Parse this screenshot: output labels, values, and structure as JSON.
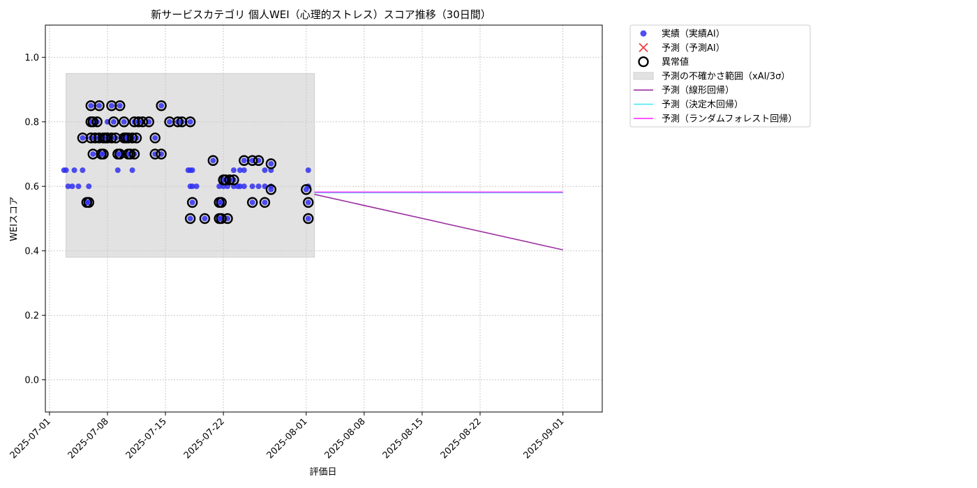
{
  "chart_data": {
    "type": "scatter",
    "title": "新サービスカテゴリ 個人WEI（心理的ストレス）スコア推移（30日間）",
    "xlabel": "評価日",
    "ylabel": "WEIスコア",
    "xlim": [
      "2025-06-30T12:00",
      "2025-09-05T18:00"
    ],
    "ylim": [
      -0.1,
      1.1
    ],
    "x_ticks": [
      "2025-07-01",
      "2025-07-08",
      "2025-07-15",
      "2025-07-22",
      "2025-08-01",
      "2025-08-08",
      "2025-08-15",
      "2025-08-22",
      "2025-09-01"
    ],
    "y_ticks": [
      0.0,
      0.2,
      0.4,
      0.6,
      0.8,
      1.0
    ],
    "y_tick_labels": [
      "0.0",
      "0.2",
      "0.4",
      "0.6",
      "0.8",
      "1.0"
    ],
    "grid": true,
    "legend_position": "outside-top-right",
    "legend": [
      {
        "label": "実績（実績AI）",
        "kind": "dot",
        "color": "#3030f0"
      },
      {
        "label": "予測（予測AI）",
        "kind": "x",
        "color": "#f04040"
      },
      {
        "label": "異常値",
        "kind": "ring",
        "color": "#000000"
      },
      {
        "label": "予測の不確かさ範囲（xAI/3σ）",
        "kind": "patch",
        "color": "#e2e2e2"
      },
      {
        "label": "予測（線形回帰）",
        "kind": "line",
        "color": "#9b30a0"
      },
      {
        "label": "予測（決定木回帰）",
        "kind": "line",
        "color": "#40e8f0"
      },
      {
        "label": "予測（ランダムフォレスト回帰）",
        "kind": "line",
        "color": "#ff30ff"
      }
    ],
    "uncertainty_band": {
      "x_start": "2025-07-03",
      "x_end": "2025-08-02",
      "y_low": 0.38,
      "y_high": 0.95,
      "color": "#e2e2e2"
    },
    "series": [
      {
        "name": "実績（実績AI）",
        "color": "#3030f0",
        "points": [
          [
            "2025-07-02T18:00",
            0.65
          ],
          [
            "2025-07-03T00:00",
            0.65
          ],
          [
            "2025-07-03T06:00",
            0.6
          ],
          [
            "2025-07-03T18:00",
            0.6
          ],
          [
            "2025-07-04T00:00",
            0.65
          ],
          [
            "2025-07-04T12:00",
            0.6
          ],
          [
            "2025-07-05T00:00",
            0.65
          ],
          [
            "2025-07-05T00:00",
            0.75
          ],
          [
            "2025-07-05T12:00",
            0.55
          ],
          [
            "2025-07-05T18:00",
            0.6
          ],
          [
            "2025-07-05T18:00",
            0.55
          ],
          [
            "2025-07-06T00:00",
            0.8
          ],
          [
            "2025-07-06T00:00",
            0.85
          ],
          [
            "2025-07-06T00:00",
            0.75
          ],
          [
            "2025-07-06T06:00",
            0.8
          ],
          [
            "2025-07-06T06:00",
            0.7
          ],
          [
            "2025-07-06T12:00",
            0.75
          ],
          [
            "2025-07-06T18:00",
            0.8
          ],
          [
            "2025-07-07T00:00",
            0.85
          ],
          [
            "2025-07-07T00:00",
            0.75
          ],
          [
            "2025-07-07T06:00",
            0.7
          ],
          [
            "2025-07-07T12:00",
            0.75
          ],
          [
            "2025-07-07T12:00",
            0.7
          ],
          [
            "2025-07-07T18:00",
            0.75
          ],
          [
            "2025-07-08T00:00",
            0.8
          ],
          [
            "2025-07-08T00:00",
            0.75
          ],
          [
            "2025-07-08T12:00",
            0.75
          ],
          [
            "2025-07-08T12:00",
            0.85
          ],
          [
            "2025-07-08T18:00",
            0.8
          ],
          [
            "2025-07-09T00:00",
            0.75
          ],
          [
            "2025-07-09T06:00",
            0.7
          ],
          [
            "2025-07-09T06:00",
            0.65
          ],
          [
            "2025-07-09T12:00",
            0.85
          ],
          [
            "2025-07-09T12:00",
            0.7
          ],
          [
            "2025-07-10T00:00",
            0.75
          ],
          [
            "2025-07-10T00:00",
            0.8
          ],
          [
            "2025-07-10T06:00",
            0.75
          ],
          [
            "2025-07-10T12:00",
            0.7
          ],
          [
            "2025-07-10T12:00",
            0.75
          ],
          [
            "2025-07-10T18:00",
            0.7
          ],
          [
            "2025-07-11T00:00",
            0.75
          ],
          [
            "2025-07-11T00:00",
            0.65
          ],
          [
            "2025-07-11T06:00",
            0.8
          ],
          [
            "2025-07-11T06:00",
            0.7
          ],
          [
            "2025-07-11T12:00",
            0.75
          ],
          [
            "2025-07-11T18:00",
            0.8
          ],
          [
            "2025-07-12T06:00",
            0.8
          ],
          [
            "2025-07-13T00:00",
            0.8
          ],
          [
            "2025-07-13T18:00",
            0.75
          ],
          [
            "2025-07-13T18:00",
            0.7
          ],
          [
            "2025-07-14T12:00",
            0.85
          ],
          [
            "2025-07-14T12:00",
            0.7
          ],
          [
            "2025-07-15T12:00",
            0.8
          ],
          [
            "2025-07-16T12:00",
            0.8
          ],
          [
            "2025-07-17T00:00",
            0.8
          ],
          [
            "2025-07-17T18:00",
            0.65
          ],
          [
            "2025-07-18T00:00",
            0.8
          ],
          [
            "2025-07-18T00:00",
            0.6
          ],
          [
            "2025-07-18T00:00",
            0.5
          ],
          [
            "2025-07-18T00:00",
            0.65
          ],
          [
            "2025-07-18T06:00",
            0.55
          ],
          [
            "2025-07-18T06:00",
            0.6
          ],
          [
            "2025-07-18T06:00",
            0.65
          ],
          [
            "2025-07-18T18:00",
            0.6
          ],
          [
            "2025-07-19T18:00",
            0.5
          ],
          [
            "2025-07-20T18:00",
            0.68
          ],
          [
            "2025-07-21T12:00",
            0.55
          ],
          [
            "2025-07-21T12:00",
            0.5
          ],
          [
            "2025-07-21T12:00",
            0.6
          ],
          [
            "2025-07-21T18:00",
            0.55
          ],
          [
            "2025-07-21T18:00",
            0.5
          ],
          [
            "2025-07-22T00:00",
            0.62
          ],
          [
            "2025-07-22T00:00",
            0.6
          ],
          [
            "2025-07-22T06:00",
            0.62
          ],
          [
            "2025-07-22T12:00",
            0.6
          ],
          [
            "2025-07-22T12:00",
            0.5
          ],
          [
            "2025-07-22T18:00",
            0.62
          ],
          [
            "2025-07-23T06:00",
            0.65
          ],
          [
            "2025-07-23T06:00",
            0.62
          ],
          [
            "2025-07-23T06:00",
            0.6
          ],
          [
            "2025-07-23T18:00",
            0.6
          ],
          [
            "2025-07-24T00:00",
            0.65
          ],
          [
            "2025-07-24T00:00",
            0.6
          ],
          [
            "2025-07-24T12:00",
            0.68
          ],
          [
            "2025-07-24T12:00",
            0.65
          ],
          [
            "2025-07-24T12:00",
            0.6
          ],
          [
            "2025-07-25T12:00",
            0.55
          ],
          [
            "2025-07-25T12:00",
            0.68
          ],
          [
            "2025-07-25T12:00",
            0.6
          ],
          [
            "2025-07-26T06:00",
            0.68
          ],
          [
            "2025-07-26T06:00",
            0.6
          ],
          [
            "2025-07-27T00:00",
            0.55
          ],
          [
            "2025-07-27T00:00",
            0.65
          ],
          [
            "2025-07-27T00:00",
            0.6
          ],
          [
            "2025-07-27T18:00",
            0.67
          ],
          [
            "2025-07-27T18:00",
            0.65
          ],
          [
            "2025-07-27T18:00",
            0.59
          ],
          [
            "2025-07-27T18:00",
            0.6
          ],
          [
            "2025-08-01T00:00",
            0.59
          ],
          [
            "2025-08-01T06:00",
            0.65
          ],
          [
            "2025-08-01T06:00",
            0.6
          ],
          [
            "2025-08-01T06:00",
            0.55
          ],
          [
            "2025-08-01T06:00",
            0.5
          ]
        ]
      },
      {
        "name": "異常値",
        "points": [
          [
            "2025-07-05T00:00",
            0.75
          ],
          [
            "2025-07-05T12:00",
            0.55
          ],
          [
            "2025-07-05T18:00",
            0.55
          ],
          [
            "2025-07-06T00:00",
            0.8
          ],
          [
            "2025-07-06T00:00",
            0.85
          ],
          [
            "2025-07-06T00:00",
            0.75
          ],
          [
            "2025-07-06T06:00",
            0.8
          ],
          [
            "2025-07-06T06:00",
            0.7
          ],
          [
            "2025-07-06T12:00",
            0.75
          ],
          [
            "2025-07-06T18:00",
            0.8
          ],
          [
            "2025-07-07T00:00",
            0.85
          ],
          [
            "2025-07-07T00:00",
            0.75
          ],
          [
            "2025-07-07T06:00",
            0.7
          ],
          [
            "2025-07-07T12:00",
            0.75
          ],
          [
            "2025-07-07T12:00",
            0.7
          ],
          [
            "2025-07-07T18:00",
            0.75
          ],
          [
            "2025-07-08T00:00",
            0.75
          ],
          [
            "2025-07-08T12:00",
            0.75
          ],
          [
            "2025-07-08T12:00",
            0.85
          ],
          [
            "2025-07-08T18:00",
            0.8
          ],
          [
            "2025-07-09T00:00",
            0.75
          ],
          [
            "2025-07-09T06:00",
            0.7
          ],
          [
            "2025-07-09T12:00",
            0.85
          ],
          [
            "2025-07-09T12:00",
            0.7
          ],
          [
            "2025-07-10T00:00",
            0.75
          ],
          [
            "2025-07-10T00:00",
            0.8
          ],
          [
            "2025-07-10T06:00",
            0.75
          ],
          [
            "2025-07-10T12:00",
            0.7
          ],
          [
            "2025-07-10T12:00",
            0.75
          ],
          [
            "2025-07-10T18:00",
            0.7
          ],
          [
            "2025-07-11T00:00",
            0.75
          ],
          [
            "2025-07-11T06:00",
            0.8
          ],
          [
            "2025-07-11T06:00",
            0.7
          ],
          [
            "2025-07-11T12:00",
            0.75
          ],
          [
            "2025-07-11T18:00",
            0.8
          ],
          [
            "2025-07-12T06:00",
            0.8
          ],
          [
            "2025-07-13T00:00",
            0.8
          ],
          [
            "2025-07-13T18:00",
            0.75
          ],
          [
            "2025-07-13T18:00",
            0.7
          ],
          [
            "2025-07-14T12:00",
            0.85
          ],
          [
            "2025-07-14T12:00",
            0.7
          ],
          [
            "2025-07-15T12:00",
            0.8
          ],
          [
            "2025-07-16T12:00",
            0.8
          ],
          [
            "2025-07-17T00:00",
            0.8
          ],
          [
            "2025-07-18T00:00",
            0.8
          ],
          [
            "2025-07-18T00:00",
            0.5
          ],
          [
            "2025-07-18T06:00",
            0.55
          ],
          [
            "2025-07-19T18:00",
            0.5
          ],
          [
            "2025-07-20T18:00",
            0.68
          ],
          [
            "2025-07-21T12:00",
            0.55
          ],
          [
            "2025-07-21T12:00",
            0.5
          ],
          [
            "2025-07-21T18:00",
            0.55
          ],
          [
            "2025-07-21T18:00",
            0.5
          ],
          [
            "2025-07-22T00:00",
            0.62
          ],
          [
            "2025-07-22T06:00",
            0.62
          ],
          [
            "2025-07-22T12:00",
            0.5
          ],
          [
            "2025-07-22T18:00",
            0.62
          ],
          [
            "2025-07-23T06:00",
            0.62
          ],
          [
            "2025-07-24T12:00",
            0.68
          ],
          [
            "2025-07-25T12:00",
            0.55
          ],
          [
            "2025-07-25T12:00",
            0.68
          ],
          [
            "2025-07-26T06:00",
            0.68
          ],
          [
            "2025-07-27T00:00",
            0.55
          ],
          [
            "2025-07-27T18:00",
            0.67
          ],
          [
            "2025-07-27T18:00",
            0.59
          ],
          [
            "2025-08-01T00:00",
            0.59
          ],
          [
            "2025-08-01T06:00",
            0.55
          ],
          [
            "2025-08-01T06:00",
            0.5
          ]
        ]
      },
      {
        "name": "予測（線形回帰）",
        "color": "#9b30a0",
        "points": [
          [
            "2025-08-02",
            0.575
          ],
          [
            "2025-09-01",
            0.403
          ]
        ]
      },
      {
        "name": "予測（決定木回帰）",
        "color": "#40e8f0",
        "points": [
          [
            "2025-08-02",
            0.58
          ],
          [
            "2025-09-01",
            0.58
          ]
        ]
      },
      {
        "name": "予測（ランダムフォレスト回帰）",
        "color": "#ff30ff",
        "points": [
          [
            "2025-08-02",
            0.582
          ],
          [
            "2025-09-01",
            0.582
          ]
        ]
      }
    ]
  }
}
